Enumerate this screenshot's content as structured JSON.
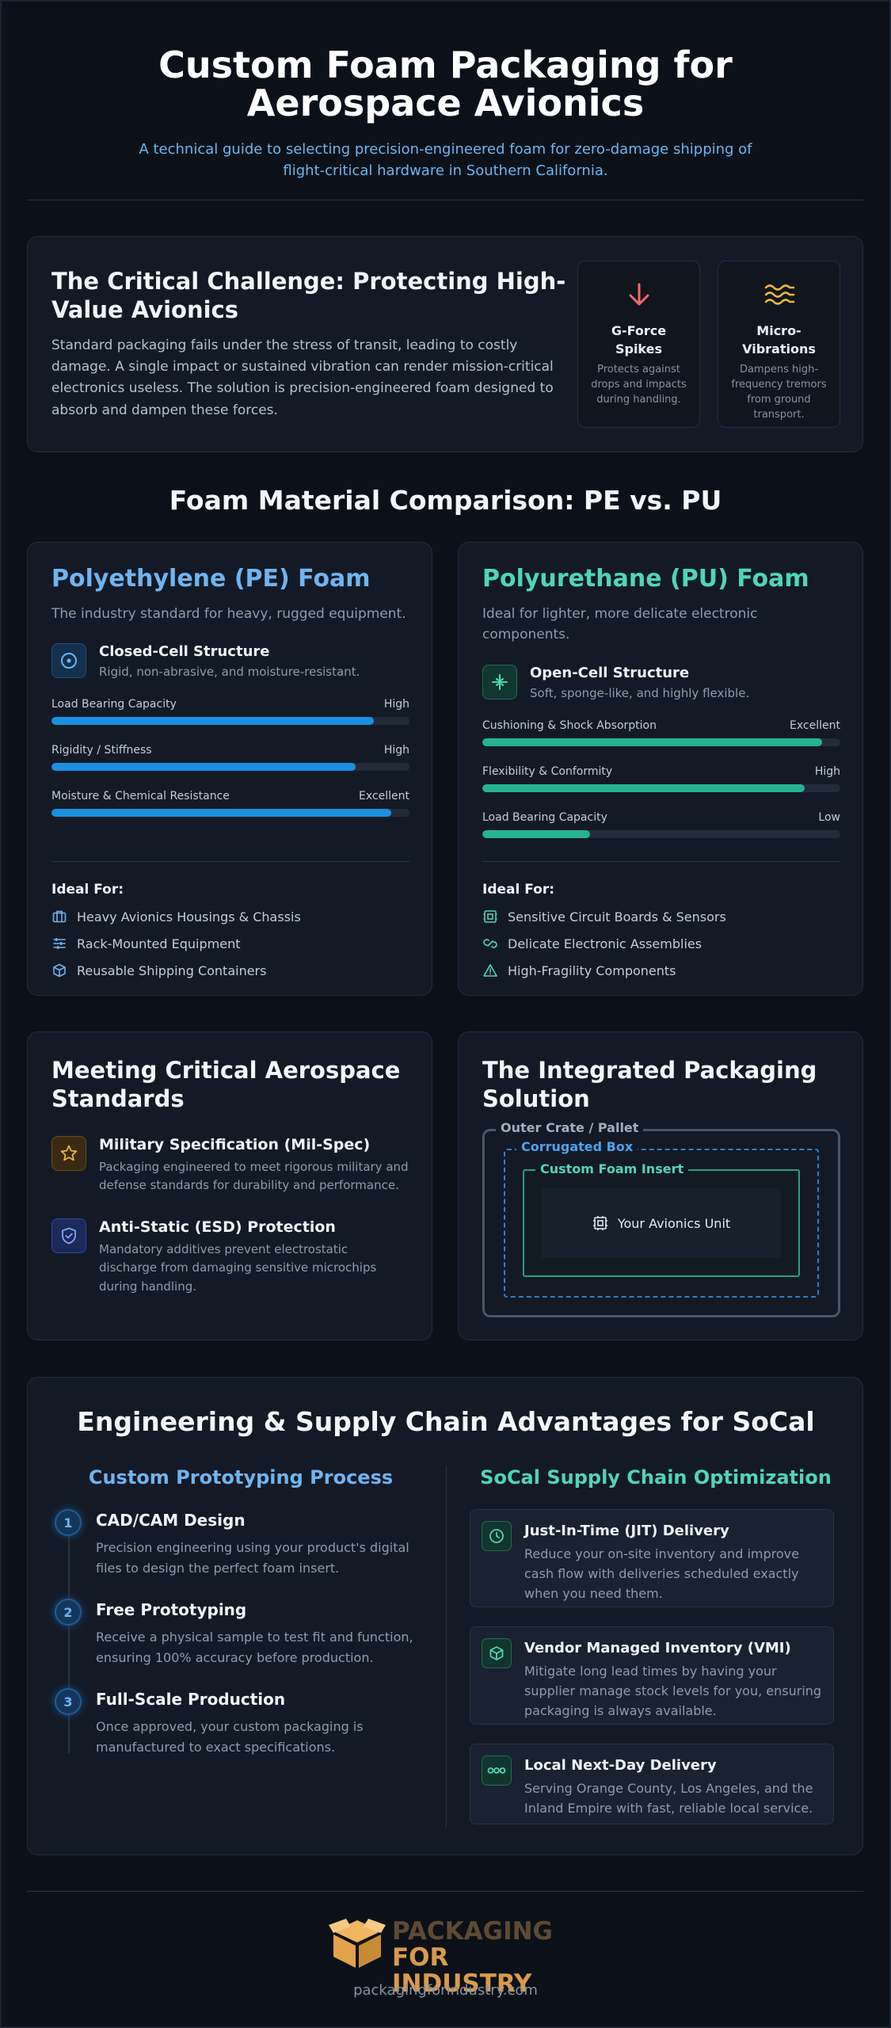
{
  "header": {
    "title": "Custom Foam Packaging for Aerospace Avionics",
    "subtitle": "A technical guide to selecting precision-engineered foam for zero-damage shipping of flight-critical hardware in Southern California."
  },
  "challenge": {
    "title": "The Critical Challenge: Protecting High-Value Avionics",
    "text": "Standard packaging fails under the stress of transit, leading to costly damage. A single impact or sustained vibration can render mission-critical electronics useless. The solution is precision-engineered foam designed to absorb and dampen these forces.",
    "cards": [
      {
        "title": "G-Force Spikes",
        "desc": "Protects against drops and impacts during handling.",
        "icon": "arrow-down-icon",
        "color": "#f06a6a"
      },
      {
        "title": "Micro-Vibrations",
        "desc": "Dampens high-frequency tremors from ground transport.",
        "icon": "vibration-waves-icon",
        "color": "#e9b63a"
      }
    ]
  },
  "comparison": {
    "title": "Foam Material Comparison: PE vs. PU",
    "pe": {
      "name": "Polyethylene (PE) Foam",
      "color": "#6fb4f0",
      "desc": "The industry standard for heavy, rugged equipment.",
      "feature_title": "Closed-Cell Structure",
      "feature_desc": "Rigid, non-abrasive, and moisture-resistant.",
      "metrics": [
        {
          "label": "Load Bearing Capacity",
          "rating": "High",
          "level": 0.9
        },
        {
          "label": "Rigidity / Stiffness",
          "rating": "High",
          "level": 0.85
        },
        {
          "label": "Moisture & Chemical Resistance",
          "rating": "Excellent",
          "level": 0.95
        }
      ],
      "ideal_heading": "Ideal For:",
      "ideal": [
        "Heavy Avionics Housings & Chassis",
        "Rack-Mounted Equipment",
        "Reusable Shipping Containers"
      ]
    },
    "pu": {
      "name": "Polyurethane (PU) Foam",
      "color": "#4fd6b4",
      "desc": "Ideal for lighter, more delicate electronic components.",
      "feature_title": "Open-Cell Structure",
      "feature_desc": "Soft, sponge-like, and highly flexible.",
      "metrics": [
        {
          "label": "Cushioning & Shock Absorption",
          "rating": "Excellent",
          "level": 0.95
        },
        {
          "label": "Flexibility & Conformity",
          "rating": "High",
          "level": 0.9
        },
        {
          "label": "Load Bearing Capacity",
          "rating": "Low",
          "level": 0.3
        }
      ],
      "ideal_heading": "Ideal For:",
      "ideal": [
        "Sensitive Circuit Boards & Sensors",
        "Delicate Electronic Assemblies",
        "High-Fragility Components"
      ]
    }
  },
  "standards": {
    "title": "Meeting Critical Aerospace Standards",
    "items": [
      {
        "title": "Military Specification (Mil-Spec)",
        "desc": "Packaging engineered to meet rigorous military and defense standards for durability and performance.",
        "icon": "star-icon"
      },
      {
        "title": "Anti-Static (ESD) Protection",
        "desc": "Mandatory additives prevent electrostatic discharge from damaging sensitive microchips during handling.",
        "icon": "shield-check-icon"
      }
    ]
  },
  "integrated": {
    "title": "The Integrated Packaging Solution",
    "outer": "Outer Crate / Pallet",
    "box": "Corrugated Box",
    "insert": "Custom Foam Insert",
    "unit": "Your Avionics Unit"
  },
  "advantages": {
    "title": "Engineering & Supply Chain Advantages for SoCal",
    "prototyping_title": "Custom Prototyping Process",
    "steps": [
      {
        "num": "1",
        "title": "CAD/CAM Design",
        "desc": "Precision engineering using your product's digital files to design the perfect foam insert."
      },
      {
        "num": "2",
        "title": "Free Prototyping",
        "desc": "Receive a physical sample to test fit and function, ensuring 100% accuracy before production."
      },
      {
        "num": "3",
        "title": "Full-Scale Production",
        "desc": "Once approved, your custom packaging is manufactured to exact specifications."
      }
    ],
    "supply_title": "SoCal Supply Chain Optimization",
    "supply": [
      {
        "title": "Just-In-Time (JIT) Delivery",
        "desc": "Reduce your on-site inventory and improve cash flow with deliveries scheduled exactly when you need them.",
        "icon": "clock-icon"
      },
      {
        "title": "Vendor Managed Inventory (VMI)",
        "desc": "Mitigate long lead times by having your supplier manage stock levels for you, ensuring packaging is always available.",
        "icon": "box-icon"
      },
      {
        "title": "Local Next-Day Delivery",
        "desc": "Serving Orange County, Los Angeles, and the Inland Empire with fast, reliable local service.",
        "icon": "truck-dots-icon"
      }
    ]
  },
  "footer": {
    "logo_line1": "PACKAGING",
    "logo_line2": "FOR INDUSTRY",
    "url": "packagingforindustry.com"
  }
}
